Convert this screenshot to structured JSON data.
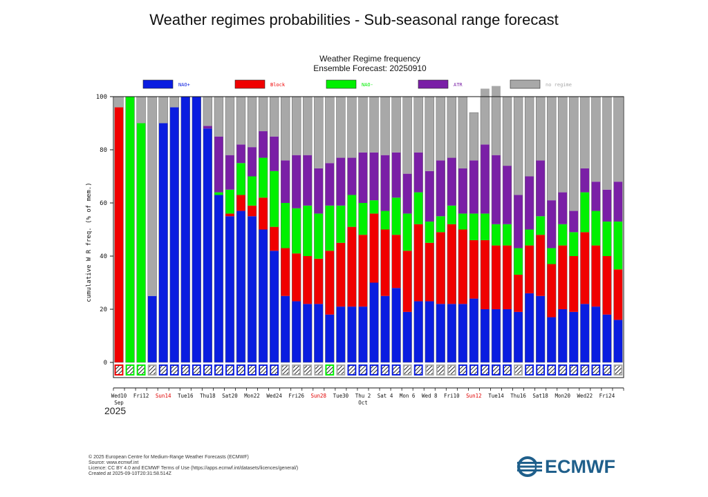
{
  "page": {
    "title": "Weather regimes probabilities - Sub-seasonal range forecast"
  },
  "footer": {
    "copyright": "© 2025 European Centre for Medium-Range Weather Forecasts (ECMWF)",
    "source": "Source: www.ecmwf.int",
    "licence": "Licence: CC BY 4.0 and ECMWF Terms of Use (https://apps.ecmwf.int/datasets/licences/general/)",
    "created": "Created at 2025-09-10T20:31:58.514Z"
  },
  "logo": {
    "text": "ECMWF",
    "color": "#1f5f8b"
  },
  "chart_data": {
    "type": "bar",
    "stacked": true,
    "title": "Weather Regime frequency",
    "subtitle": "Ensemble Forecast: 20250910",
    "ylabel": "cumulative W R freq. (% of mem.)",
    "ylim": [
      0,
      100
    ],
    "yticks": [
      0,
      20,
      40,
      60,
      80,
      100
    ],
    "year_label": "2025",
    "x_tick_labels": [
      {
        "day": 0,
        "text": "Wed10",
        "sub": "Sep",
        "red": false
      },
      {
        "day": 2,
        "text": "Fri12",
        "sub": "",
        "red": false
      },
      {
        "day": 4,
        "text": "Sun14",
        "sub": "",
        "red": true
      },
      {
        "day": 6,
        "text": "Tue16",
        "sub": "",
        "red": false
      },
      {
        "day": 8,
        "text": "Thu18",
        "sub": "",
        "red": false
      },
      {
        "day": 10,
        "text": "Sat20",
        "sub": "",
        "red": false
      },
      {
        "day": 12,
        "text": "Mon22",
        "sub": "",
        "red": false
      },
      {
        "day": 14,
        "text": "Wed24",
        "sub": "",
        "red": false
      },
      {
        "day": 16,
        "text": "Fri26",
        "sub": "",
        "red": false
      },
      {
        "day": 18,
        "text": "Sun28",
        "sub": "",
        "red": true
      },
      {
        "day": 20,
        "text": "Tue30",
        "sub": "",
        "red": false
      },
      {
        "day": 22,
        "text": "Thu 2",
        "sub": "Oct",
        "red": false
      },
      {
        "day": 24,
        "text": "Sat 4",
        "sub": "",
        "red": false
      },
      {
        "day": 26,
        "text": "Mon 6",
        "sub": "",
        "red": false
      },
      {
        "day": 28,
        "text": "Wed 8",
        "sub": "",
        "red": false
      },
      {
        "day": 30,
        "text": "Fri10",
        "sub": "",
        "red": false
      },
      {
        "day": 32,
        "text": "Sun12",
        "sub": "",
        "red": true
      },
      {
        "day": 34,
        "text": "Tue14",
        "sub": "",
        "red": false
      },
      {
        "day": 36,
        "text": "Thu16",
        "sub": "",
        "red": false
      },
      {
        "day": 38,
        "text": "Sat18",
        "sub": "",
        "red": false
      },
      {
        "day": 40,
        "text": "Mon20",
        "sub": "",
        "red": false
      },
      {
        "day": 42,
        "text": "Wed22",
        "sub": "",
        "red": false
      },
      {
        "day": 44,
        "text": "Fri24",
        "sub": "",
        "red": false
      }
    ],
    "series": [
      {
        "name": "NAO+",
        "color": "#0a1de0",
        "values": [
          0,
          0,
          0,
          25,
          90,
          96,
          100,
          100,
          88,
          63,
          55,
          57,
          55,
          50,
          42,
          25,
          23,
          22,
          22,
          18,
          21,
          21,
          21,
          30,
          25,
          28,
          19,
          23,
          23,
          22,
          22,
          22,
          24,
          20,
          20,
          20,
          19,
          26,
          25,
          17,
          20,
          19,
          22,
          21,
          18,
          16
        ]
      },
      {
        "name": "Block",
        "color": "#f00000",
        "values": [
          96,
          0,
          0,
          0,
          0,
          0,
          0,
          0,
          0,
          0,
          1,
          6,
          4,
          12,
          9,
          18,
          18,
          18,
          17,
          24,
          24,
          30,
          27,
          26,
          25,
          20,
          23,
          29,
          22,
          27,
          30,
          28,
          22,
          26,
          24,
          24,
          14,
          18,
          23,
          20,
          24,
          21,
          27,
          23,
          22,
          19
        ]
      },
      {
        "name": "NAO-",
        "color": "#00f000",
        "values": [
          0,
          100,
          90,
          0,
          0,
          0,
          0,
          0,
          0,
          1,
          9,
          12,
          11,
          15,
          21,
          17,
          17,
          19,
          17,
          17,
          14,
          12,
          12,
          5,
          7,
          14,
          14,
          12,
          8,
          6,
          7,
          6,
          10,
          10,
          8,
          8,
          10,
          6,
          7,
          6,
          8,
          9,
          15,
          13,
          13,
          18
        ]
      },
      {
        "name": "ATR",
        "color": "#7a1fa6",
        "values": [
          0,
          0,
          0,
          0,
          0,
          0,
          0,
          0,
          1,
          21,
          13,
          7,
          11,
          10,
          13,
          16,
          20,
          19,
          17,
          16,
          18,
          14,
          19,
          18,
          21,
          17,
          15,
          15,
          19,
          21,
          18,
          17,
          20,
          26,
          26,
          22,
          20,
          20,
          21,
          18,
          12,
          8,
          9,
          11,
          12,
          15
        ]
      },
      {
        "name": "no regime",
        "color": "#a8a8a8",
        "values": [
          4,
          0,
          10,
          75,
          10,
          4,
          0,
          0,
          11,
          15,
          22,
          18,
          19,
          13,
          15,
          24,
          22,
          22,
          27,
          25,
          23,
          23,
          21,
          21,
          22,
          21,
          29,
          21,
          28,
          24,
          23,
          27,
          18,
          21,
          26,
          26,
          37,
          30,
          24,
          39,
          36,
          43,
          27,
          32,
          35,
          32
        ]
      }
    ],
    "day0_regime": [
      "Block",
      "NAO-",
      "NAO-",
      "no regime",
      "NAO+",
      "NAO+",
      "NAO+",
      "NAO+",
      "NAO+",
      "NAO+",
      "NAO+",
      "NAO+",
      "NAO+",
      "NAO+",
      "NAO+",
      "no regime",
      "no regime",
      "no regime",
      "no regime",
      "NAO-",
      "no regime",
      "NAO+",
      "NAO+",
      "NAO+",
      "NAO+",
      "NAO+",
      "no regime",
      "NAO+",
      "no regime",
      "no regime",
      "no regime",
      "NAO+",
      "NAO+",
      "NAO+",
      "NAO+",
      "NAO+",
      "no regime",
      "NAO+",
      "NAO+",
      "NAO+",
      "NAO+",
      "NAO+",
      "NAO+",
      "NAO+",
      "NAO+",
      "no regime"
    ],
    "grid": false,
    "legend": "top"
  }
}
